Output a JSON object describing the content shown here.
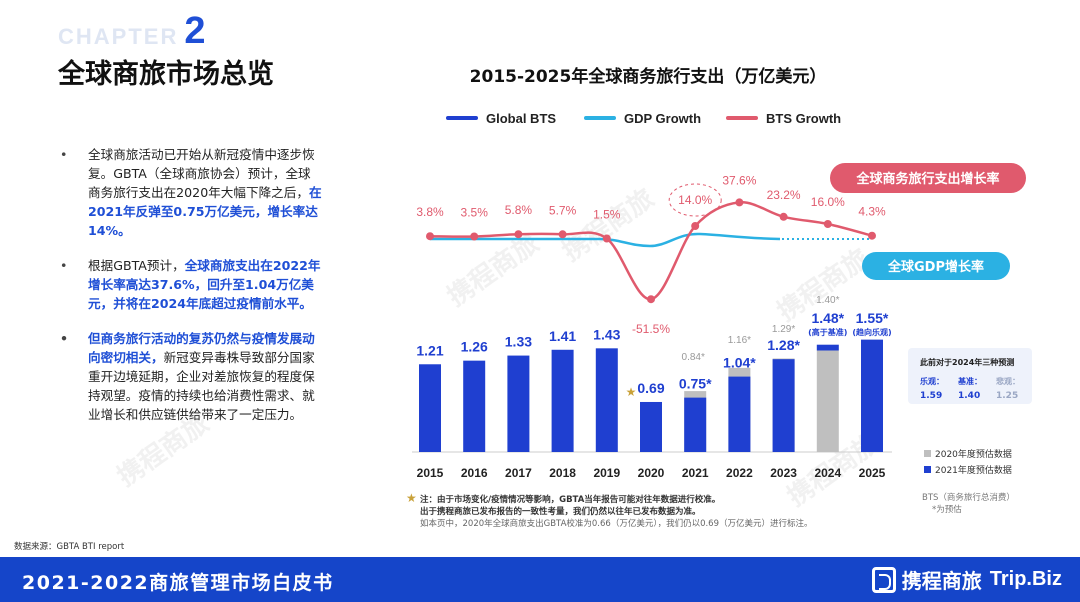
{
  "header": {
    "chapter_word": "CHAPTER",
    "chapter_number": "2",
    "title": "全球商旅市场总览"
  },
  "bullets": [
    {
      "pre": "全球商旅活动已开始从新冠疫情中逐步恢复。GBTA（全球商旅协会）预计，全球商务旅行支出在2020年大幅下降之后，",
      "highlight": "在2021年反弹至0.75万亿美元，增长率达14%。",
      "post": ""
    },
    {
      "pre": "根据GBTA预计，",
      "highlight": "全球商旅支出在2022年增长率高达37.6%，回升至1.04万亿美元，并将在2024年底超过疫情前水平。",
      "post": ""
    },
    {
      "highlight": "但商务旅行活动的复苏仍然与疫情发展动向密切相关，",
      "post": "新冠变异毒株导致部分国家重开边境延期，企业对差旅恢复的程度保持观望。疫情的持续也给消费性需求、就业增长和供应链供给带来了一定压力。"
    }
  ],
  "source": "数据来源：GBTA BTI report",
  "footer": {
    "title": "2021-2022商旅管理市场白皮书",
    "logo_cn": "携程商旅",
    "logo_en": "Trip.Biz"
  },
  "watermark_text": "携程商旅",
  "chart_data": {
    "type": "bar",
    "title": "2015-2025年全球商务旅行支出（万亿美元）",
    "legend": [
      "Global BTS",
      "GDP Growth",
      "BTS Growth"
    ],
    "legend_placement": "top",
    "categories": [
      "2015",
      "2016",
      "2017",
      "2018",
      "2019",
      "2020",
      "2021",
      "2022",
      "2023",
      "2024",
      "2025"
    ],
    "series": [
      {
        "name": "2021年度预估数据",
        "values": [
          1.21,
          1.26,
          1.33,
          1.41,
          1.43,
          0.69,
          0.75,
          1.04,
          1.28,
          1.48,
          1.55
        ],
        "labels": [
          "1.21",
          "1.26",
          "1.33",
          "1.41",
          "1.43",
          "0.69",
          "0.75*",
          "1.04*",
          "1.28*",
          "1.48*",
          "1.55*"
        ],
        "color": "#1f3fd0"
      },
      {
        "name": "2020年度预估数据",
        "values": [
          null,
          null,
          null,
          null,
          null,
          null,
          0.84,
          1.16,
          1.29,
          1.4,
          null
        ],
        "labels": [
          "",
          "",
          "",
          "",
          "",
          "",
          "0.84*",
          "1.16*",
          "1.29*",
          "1.40*",
          ""
        ],
        "color": "#bfbfbf"
      }
    ],
    "bts_growth": {
      "name": "BTS Growth",
      "color": "#e05a6d",
      "values": [
        3.8,
        3.5,
        5.8,
        5.7,
        1.5,
        -51.5,
        14.0,
        37.6,
        23.2,
        16.0,
        4.3
      ],
      "labels": [
        "3.8%",
        "3.5%",
        "5.8%",
        "5.7%",
        "1.5%",
        "-51.5%",
        "14.0%",
        "37.6%",
        "23.2%",
        "16.0%",
        "4.3%"
      ]
    },
    "gdp_growth": {
      "name": "GDP Growth",
      "color": "#2bb1e3"
    },
    "sublabels_2024": "(高于基准)",
    "sublabels_2025": "(趋向乐观)",
    "callout_bts": "全球商务旅行支出增长率",
    "callout_gdp": "全球GDP增长率",
    "scenario_box": {
      "title": "此前对于2024年三种预测",
      "items": [
        {
          "label": "乐观：",
          "value": "1.59"
        },
        {
          "label": "基准：",
          "value": "1.40"
        },
        {
          "label": "悲观：",
          "value": "1.25"
        }
      ]
    },
    "legend2": [
      {
        "label": "2020年度预估数据",
        "color": "#bfbfbf"
      },
      {
        "label": "2021年度预估数据",
        "color": "#1f3fd0"
      }
    ],
    "note_bts": "BTS（商务旅行总消费）",
    "note_star": "*为预估",
    "footnote_1": "注：由于市场变化/疫情情况等影响，GBTA当年报告可能对往年数据进行校准。",
    "footnote_2": "出于携程商旅已发布报告的一致性考量，我们仍然以往年已发布数据为准。",
    "footnote_3": "如本页中，2020年全球商旅支出GBTA校准为0.66（万亿美元），我们仍以0.69（万亿美元）进行标注。",
    "ylim": [
      0,
      1.6
    ]
  }
}
